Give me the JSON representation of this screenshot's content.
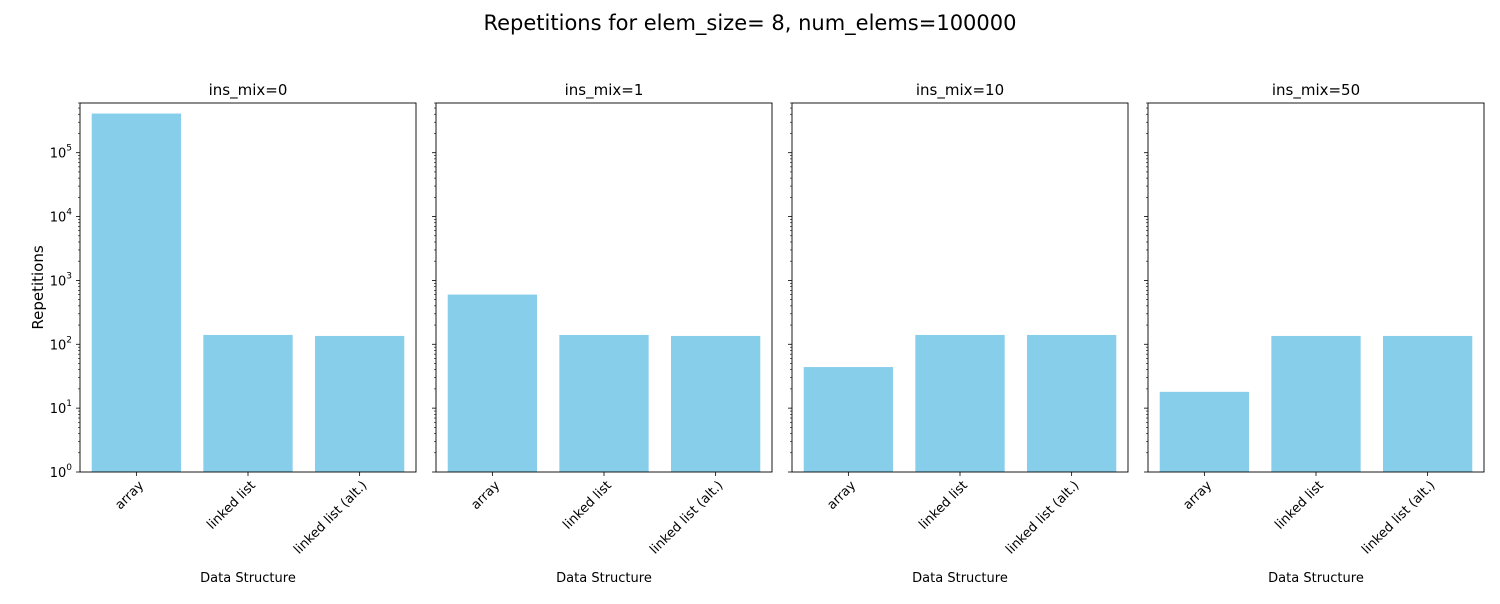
{
  "figure": {
    "title": "Repetitions for elem_size= 8, num_elems=100000"
  },
  "chart_data": {
    "type": "bar",
    "scale": "log",
    "ylabel": "Repetitions",
    "xlabel": "Data Structure",
    "ylim": [
      1,
      600000
    ],
    "yticks": [
      {
        "value": 1,
        "base": "10",
        "exp": "0"
      },
      {
        "value": 10,
        "base": "10",
        "exp": "1"
      },
      {
        "value": 100,
        "base": "10",
        "exp": "2"
      },
      {
        "value": 1000,
        "base": "10",
        "exp": "3"
      },
      {
        "value": 10000,
        "base": "10",
        "exp": "4"
      },
      {
        "value": 100000,
        "base": "10",
        "exp": "5"
      }
    ],
    "categories": [
      "array",
      "linked list",
      "linked list (alt.)"
    ],
    "bar_color": "#87CEEB",
    "shared_y": true,
    "grid": false,
    "panels": [
      {
        "title": "ins_mix=0",
        "values": [
          410000,
          140,
          135
        ]
      },
      {
        "title": "ins_mix=1",
        "values": [
          600,
          140,
          135
        ]
      },
      {
        "title": "ins_mix=10",
        "values": [
          44,
          140,
          140
        ]
      },
      {
        "title": "ins_mix=50",
        "values": [
          18,
          135,
          135
        ]
      }
    ]
  }
}
